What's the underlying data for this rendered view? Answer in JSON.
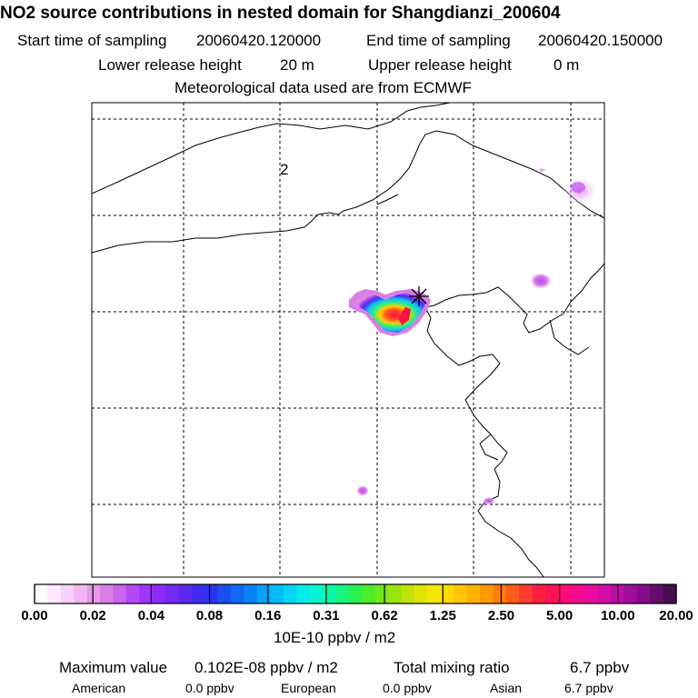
{
  "header": {
    "title": "NO2 source contributions in nested domain for Shangdianzi_200604",
    "start_label": "Start time of sampling",
    "start_value": "20060420.120000",
    "end_label": "End time of sampling",
    "end_value": "20060420.150000",
    "lower_label": "Lower release height",
    "lower_value": "20 m",
    "upper_label": "Upper release height",
    "upper_value": "0 m",
    "met_text": "Meteorological data used are from ECMWF"
  },
  "map": {
    "contour_label": "2",
    "receptor_marker": "site-star"
  },
  "colorbar": {
    "tick_labels": [
      "0.00",
      "0.02",
      "0.04",
      "0.08",
      "0.16",
      "0.31",
      "0.62",
      "1.25",
      "2.50",
      "5.00",
      "10.00",
      "20.00"
    ],
    "unit": "10E-10 ppbv / m2",
    "colors": [
      "#fff8ff",
      "#fde8fd",
      "#f9d0f9",
      "#f3b6f3",
      "#e79ae9",
      "#d97fe4",
      "#c864ee",
      "#b448f6",
      "#a034fb",
      "#8b2bf9",
      "#7328f5",
      "#5a2af1",
      "#3f2bee",
      "#2a35f0",
      "#1a4ef2",
      "#1068f4",
      "#0a84f5",
      "#06a0f6",
      "#04bcf6",
      "#03d6f2",
      "#03ecea",
      "#06f7d0",
      "#0cf7a8",
      "#18f47c",
      "#2cf050",
      "#4cec2c",
      "#72e81a",
      "#9ae40e",
      "#c0e206",
      "#e0e402",
      "#f4e600",
      "#fbd900",
      "#fec600",
      "#ffb000",
      "#ff9800",
      "#ff7c08",
      "#ff5c18",
      "#ff3c2c",
      "#ff2040",
      "#ff1058",
      "#fc0c78",
      "#f40c90",
      "#e80ca0",
      "#d40ca8",
      "#bc0ca8",
      "#a00c9c",
      "#840c88",
      "#640c6c",
      "#480c50"
    ]
  },
  "footer": {
    "max_label": "Maximum value",
    "max_value": "0.102E-08 ppbv / m2",
    "total_label": "Total mixing ratio",
    "total_value": "6.7 ppbv",
    "american_label": "American",
    "american_value": "0.0 ppbv",
    "european_label": "European",
    "european_value": "0.0 ppbv",
    "asian_label": "Asian",
    "asian_value": "6.7 ppbv"
  }
}
